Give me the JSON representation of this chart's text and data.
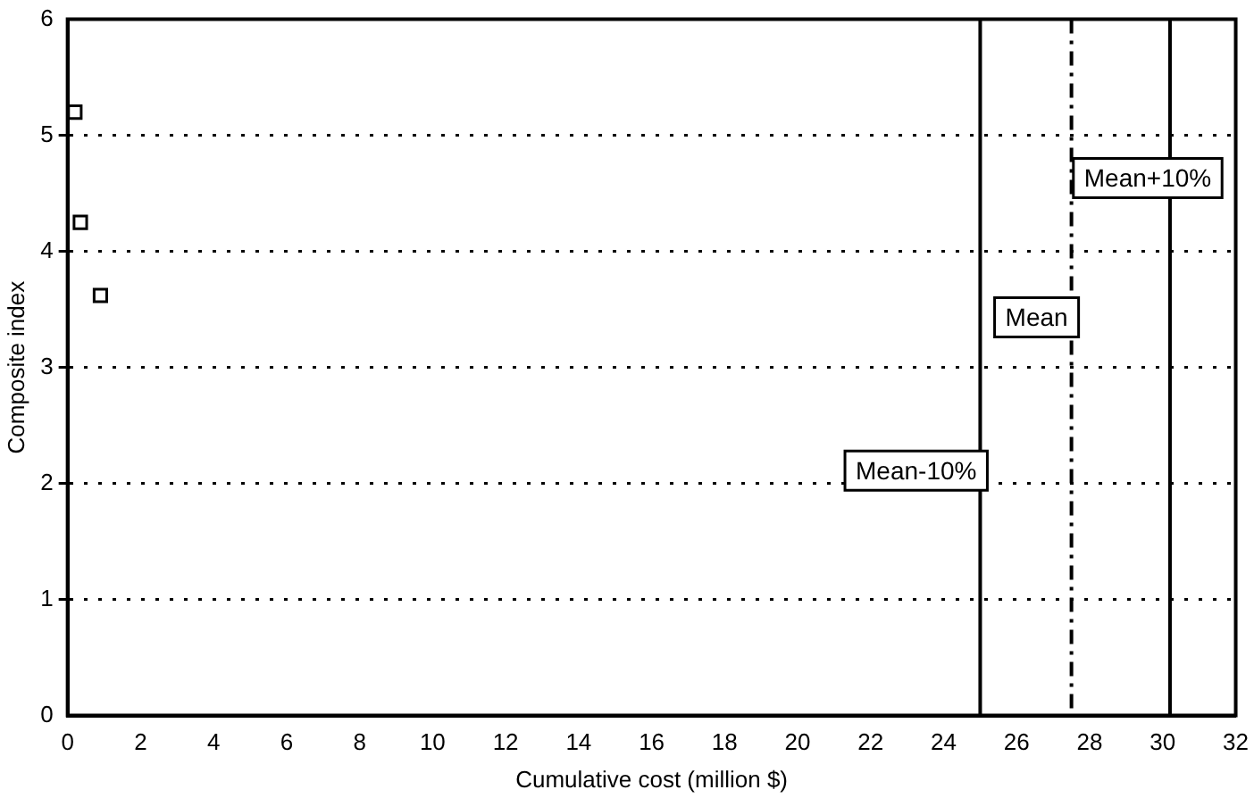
{
  "chart_data": {
    "type": "scatter",
    "xlabel": "Cumulative cost (million $)",
    "ylabel": "Composite index",
    "x": [
      0.2,
      0.35,
      0.9
    ],
    "values": [
      5.2,
      4.25,
      3.62
    ],
    "color": "#000000",
    "marker": "square",
    "xlim": [
      0,
      32
    ],
    "xticks": [
      0,
      2,
      4,
      6,
      8,
      10,
      12,
      14,
      16,
      18,
      20,
      22,
      24,
      26,
      28,
      30,
      32
    ],
    "ylim": [
      0,
      6
    ],
    "yticks": [
      0,
      1,
      2,
      3,
      4,
      5,
      6
    ],
    "grid": "y",
    "ref_lines": [
      {
        "axis": "x",
        "value": 25,
        "label": "Mean-10%",
        "line_style": "solid"
      },
      {
        "axis": "x",
        "value": 27.5,
        "label": "Mean",
        "line_style": "dashed"
      },
      {
        "axis": "x",
        "value": 30.2,
        "label": "Mean+10%",
        "line_style": "solid"
      }
    ]
  }
}
